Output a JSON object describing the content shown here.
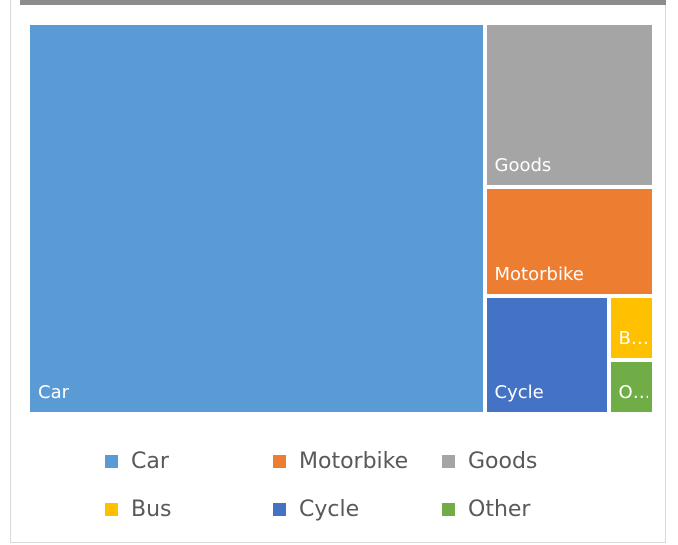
{
  "chart_data": {
    "type": "treemap",
    "categories": [
      "Car",
      "Motorbike",
      "Goods",
      "Bus",
      "Cycle",
      "Other"
    ],
    "values": [
      73,
      7.5,
      11.4,
      1.2,
      6,
      1
    ],
    "colors": [
      "#5b9bd5",
      "#ed7d31",
      "#a5a5a5",
      "#ffc000",
      "#4472c4",
      "#70ad47"
    ],
    "legend": "bottom"
  }
}
